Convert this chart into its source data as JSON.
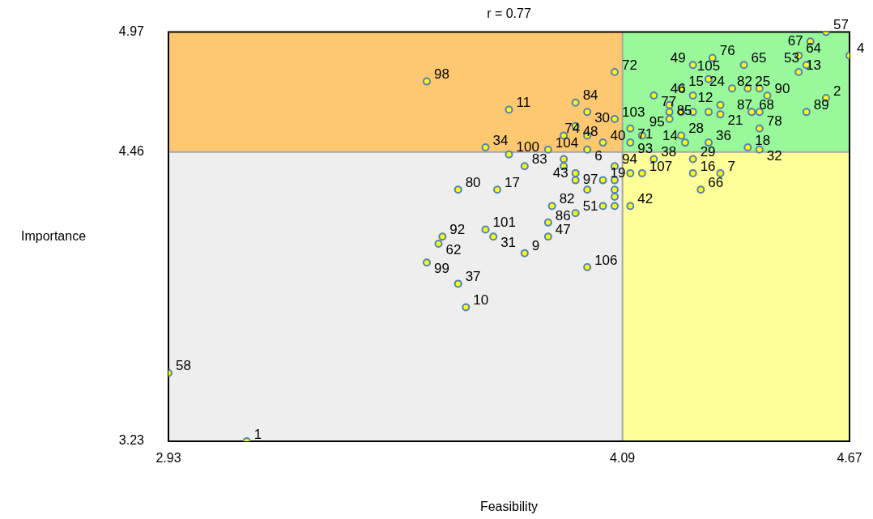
{
  "chart_data": {
    "type": "scatter",
    "title": "r = 0.77",
    "xlabel": "Feasibility",
    "ylabel": "Importance",
    "xlim": [
      2.93,
      4.67
    ],
    "ylim": [
      3.23,
      4.97
    ],
    "xticks": [
      2.93,
      4.09,
      4.67
    ],
    "yticks": [
      3.23,
      4.46,
      4.97
    ],
    "ref_lines": [
      {
        "axis": "x",
        "value": 4.09,
        "color": "#a6a6a6"
      },
      {
        "axis": "y",
        "value": 4.46,
        "color": "#a6a6a6"
      }
    ],
    "marker": "circle",
    "series": [
      {
        "color": "#ffff00",
        "x": [
          3.13,
          2.93,
          3.59,
          3.8,
          3.74,
          3.8,
          3.84,
          3.67,
          3.77,
          3.63,
          3.62,
          3.59,
          3.74,
          3.76,
          3.84,
          3.9,
          3.9,
          3.91,
          3.97,
          4.04,
          3.67,
          3.69,
          4.0,
          4.07,
          3.97,
          4.0,
          3.97,
          4.0,
          3.94,
          4.04,
          4.07,
          4.0,
          3.9,
          3.94,
          3.94,
          3.97,
          3.97,
          4.04,
          4.0,
          4.07,
          4.07,
          4.07,
          4.07,
          4.07,
          4.11,
          4.11,
          4.14,
          4.17,
          4.27,
          4.27,
          4.34,
          4.29,
          4.31,
          4.24,
          4.25,
          4.41,
          4.44,
          4.44,
          4.42,
          4.44,
          4.56,
          4.61,
          4.34,
          4.46,
          4.41,
          4.44,
          4.37,
          4.27,
          4.24,
          4.31,
          4.17,
          4.21,
          4.27,
          4.32,
          4.4,
          4.54,
          4.56,
          4.54,
          4.67,
          4.57,
          4.61,
          4.11,
          4.11,
          4.14,
          4.34,
          4.21,
          4.21,
          4.24,
          4.27,
          4.31
        ],
        "values": [
          3.23,
          3.52,
          4.76,
          4.64,
          4.48,
          4.45,
          4.4,
          4.3,
          4.3,
          4.1,
          4.07,
          3.99,
          4.13,
          4.1,
          4.03,
          4.1,
          4.16,
          4.23,
          4.2,
          4.23,
          3.9,
          3.8,
          3.97,
          4.8,
          4.67,
          4.63,
          4.57,
          4.53,
          4.53,
          4.5,
          4.6,
          4.47,
          4.47,
          4.43,
          4.4,
          4.37,
          4.34,
          4.34,
          4.3,
          4.4,
          4.34,
          4.3,
          4.27,
          4.23,
          4.37,
          4.23,
          4.37,
          4.43,
          4.43,
          4.37,
          4.37,
          4.3,
          4.5,
          4.53,
          4.5,
          4.48,
          4.47,
          4.56,
          4.63,
          4.63,
          4.63,
          4.69,
          4.66,
          4.7,
          4.73,
          4.73,
          4.73,
          4.7,
          4.73,
          4.77,
          4.7,
          4.66,
          4.83,
          4.86,
          4.83,
          4.8,
          4.83,
          4.87,
          4.87,
          4.93,
          4.97,
          4.56,
          4.5,
          4.53,
          4.62,
          4.63,
          4.6,
          4.63,
          4.63,
          4.63
        ]
      }
    ],
    "annotations": [
      {
        "text": "1",
        "x": 3.13,
        "y": 3.23
      },
      {
        "text": "58",
        "x": 2.93,
        "y": 3.52
      },
      {
        "text": "98",
        "x": 3.59,
        "y": 4.76
      },
      {
        "text": "11",
        "x": 3.8,
        "y": 4.64
      },
      {
        "text": "34",
        "x": 3.74,
        "y": 4.48
      },
      {
        "text": "100",
        "x": 3.8,
        "y": 4.45
      },
      {
        "text": "83",
        "x": 3.84,
        "y": 4.4
      },
      {
        "text": "80",
        "x": 3.67,
        "y": 4.3
      },
      {
        "text": "17",
        "x": 3.77,
        "y": 4.3
      },
      {
        "text": "92",
        "x": 3.63,
        "y": 4.1
      },
      {
        "text": "62",
        "x": 3.62,
        "y": 4.07
      },
      {
        "text": "99",
        "x": 3.59,
        "y": 3.99
      },
      {
        "text": "101",
        "x": 3.74,
        "y": 4.13
      },
      {
        "text": "31",
        "x": 3.76,
        "y": 4.1
      },
      {
        "text": "9",
        "x": 3.84,
        "y": 4.03
      },
      {
        "text": "47",
        "x": 3.9,
        "y": 4.1
      },
      {
        "text": "86",
        "x": 3.9,
        "y": 4.16
      },
      {
        "text": "82",
        "x": 3.91,
        "y": 4.23
      },
      {
        "text": "51",
        "x": 3.97,
        "y": 4.2
      },
      {
        "text": "37",
        "x": 3.67,
        "y": 3.9
      },
      {
        "text": "10",
        "x": 3.69,
        "y": 3.8
      },
      {
        "text": "106",
        "x": 4.0,
        "y": 3.97
      },
      {
        "text": "72",
        "x": 4.07,
        "y": 4.8
      },
      {
        "text": "84",
        "x": 3.97,
        "y": 4.67
      },
      {
        "text": "30",
        "x": 4.0,
        "y": 4.63
      },
      {
        "text": "48",
        "x": 3.97,
        "y": 4.57
      },
      {
        "text": "74",
        "x": 4.0,
        "y": 4.53
      },
      {
        "text": "40",
        "x": 4.04,
        "y": 4.5
      },
      {
        "text": "103",
        "x": 4.07,
        "y": 4.6
      },
      {
        "text": "6",
        "x": 4.0,
        "y": 4.47
      },
      {
        "text": "104",
        "x": 3.9,
        "y": 4.47
      },
      {
        "text": "97",
        "x": 3.97,
        "y": 4.37
      },
      {
        "text": "43",
        "x": 3.97,
        "y": 4.34
      },
      {
        "text": "19",
        "x": 4.04,
        "y": 4.34
      },
      {
        "text": "94",
        "x": 4.07,
        "y": 4.4
      },
      {
        "text": "42",
        "x": 4.11,
        "y": 4.23
      },
      {
        "text": "107",
        "x": 4.14,
        "y": 4.37
      },
      {
        "text": "38",
        "x": 4.17,
        "y": 4.43
      },
      {
        "text": "29",
        "x": 4.27,
        "y": 4.43
      },
      {
        "text": "16",
        "x": 4.27,
        "y": 4.37
      },
      {
        "text": "7",
        "x": 4.34,
        "y": 4.37
      },
      {
        "text": "66",
        "x": 4.29,
        "y": 4.3
      },
      {
        "text": "36",
        "x": 4.31,
        "y": 4.5
      },
      {
        "text": "28",
        "x": 4.24,
        "y": 4.53
      },
      {
        "text": "14",
        "x": 4.25,
        "y": 4.5
      },
      {
        "text": "18",
        "x": 4.41,
        "y": 4.48
      },
      {
        "text": "32",
        "x": 4.44,
        "y": 4.47
      },
      {
        "text": "78",
        "x": 4.44,
        "y": 4.56
      },
      {
        "text": "68",
        "x": 4.42,
        "y": 4.63
      },
      {
        "text": "87",
        "x": 4.44,
        "y": 4.63
      },
      {
        "text": "89",
        "x": 4.56,
        "y": 4.63
      },
      {
        "text": "2",
        "x": 4.61,
        "y": 4.69
      },
      {
        "text": "12",
        "x": 4.34,
        "y": 4.66
      },
      {
        "text": "90",
        "x": 4.46,
        "y": 4.7
      },
      {
        "text": "25",
        "x": 4.41,
        "y": 4.73
      },
      {
        "text": "82",
        "x": 4.44,
        "y": 4.73
      },
      {
        "text": "24",
        "x": 4.37,
        "y": 4.73
      },
      {
        "text": "46",
        "x": 4.27,
        "y": 4.7
      },
      {
        "text": "15",
        "x": 4.24,
        "y": 4.73
      },
      {
        "text": "105",
        "x": 4.31,
        "y": 4.77
      },
      {
        "text": "77",
        "x": 4.17,
        "y": 4.7
      },
      {
        "text": "85",
        "x": 4.21,
        "y": 4.66
      },
      {
        "text": "49",
        "x": 4.27,
        "y": 4.83
      },
      {
        "text": "76",
        "x": 4.32,
        "y": 4.86
      },
      {
        "text": "65",
        "x": 4.4,
        "y": 4.83
      },
      {
        "text": "13",
        "x": 4.54,
        "y": 4.8
      },
      {
        "text": "53",
        "x": 4.56,
        "y": 4.83
      },
      {
        "text": "64",
        "x": 4.54,
        "y": 4.87
      },
      {
        "text": "4",
        "x": 4.67,
        "y": 4.87
      },
      {
        "text": "67",
        "x": 4.57,
        "y": 4.93
      },
      {
        "text": "57",
        "x": 4.61,
        "y": 4.97
      },
      {
        "text": "71",
        "x": 4.11,
        "y": 4.56
      },
      {
        "text": "93",
        "x": 4.11,
        "y": 4.5
      },
      {
        "text": "95",
        "x": 4.14,
        "y": 4.53
      },
      {
        "text": "21",
        "x": 4.34,
        "y": 4.62
      }
    ]
  }
}
